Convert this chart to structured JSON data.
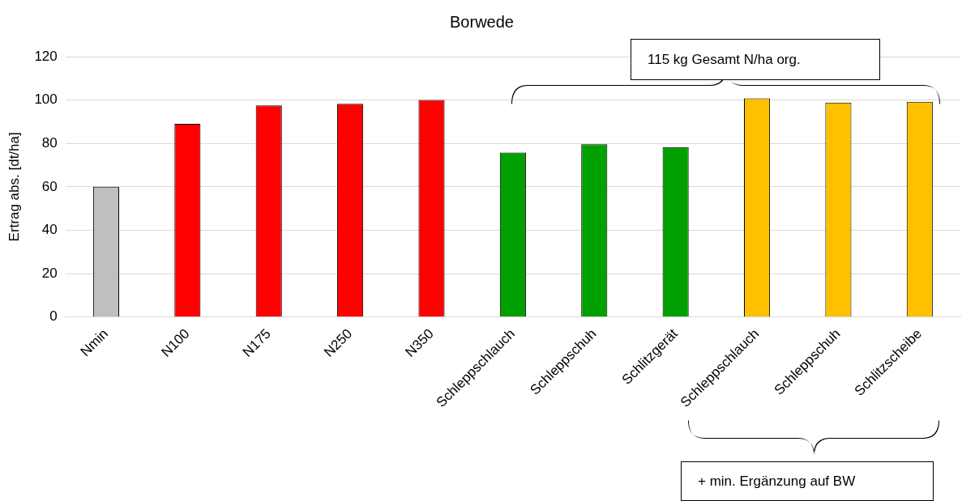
{
  "chart_data": {
    "type": "bar",
    "title": "Borwede",
    "ylabel": "Ertrag abs. [dt/ha]",
    "categories": [
      "Nmin",
      "N100",
      "N175",
      "N250",
      "N350",
      "Schleppschlauch",
      "Schleppschuh",
      "Schlitzgerät",
      "Schleppschlauch",
      "Schleppschuh",
      "Schlitzscheibe"
    ],
    "values": [
      60,
      89,
      97.5,
      98.3,
      100,
      75.8,
      79.6,
      78.3,
      100.8,
      98.8,
      99.2
    ],
    "colors": [
      "#bfbfbf",
      "#ff0000",
      "#ff0000",
      "#ff0000",
      "#ff0000",
      "#00a000",
      "#00a000",
      "#00a000",
      "#ffc000",
      "#ffc000",
      "#ffc000"
    ],
    "ylim": [
      0,
      120
    ],
    "yticks": [
      0,
      20,
      40,
      60,
      80,
      100,
      120
    ],
    "grid": "y",
    "annotations": [
      "115 kg Gesamt N/ha org.",
      "+ min. Ergänzung auf BW"
    ]
  }
}
